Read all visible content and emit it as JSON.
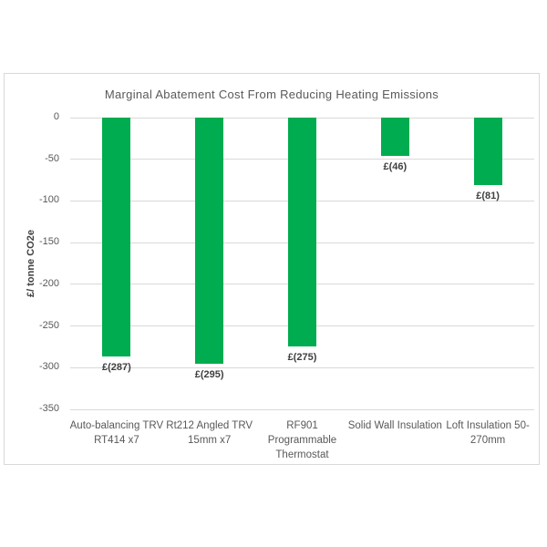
{
  "chart_data": {
    "type": "bar",
    "title": "Marginal Abatement Cost From Reducing Heating Emissions",
    "ylabel": "£/ tonne CO2e",
    "xlabel": "",
    "categories": [
      "Auto-balancing TRV RT414 x7",
      "Rt212 Angled TRV 15mm x7",
      "RF901 Programmable Thermostat",
      "Solid Wall Insulation",
      "Loft Insulation 50-270mm"
    ],
    "values": [
      -287,
      -295,
      -275,
      -46,
      -81
    ],
    "data_labels": [
      "£(287)",
      "£(295)",
      "£(275)",
      "£(46)",
      "£(81)"
    ],
    "ylim": [
      -350,
      0
    ],
    "yticks": [
      0,
      -50,
      -100,
      -150,
      -200,
      -250,
      -300,
      -350
    ],
    "grid": true,
    "legend": false
  },
  "colors": {
    "bar": "#00AC50",
    "gridline": "#D9D9D9",
    "chart_border": "#D9D9D9",
    "title_text": "#595959",
    "tick_text": "#595959",
    "category_text": "#595959",
    "data_label_text": "#3F3F3F",
    "axis_title_text": "#404040",
    "background": "#FFFFFF"
  }
}
